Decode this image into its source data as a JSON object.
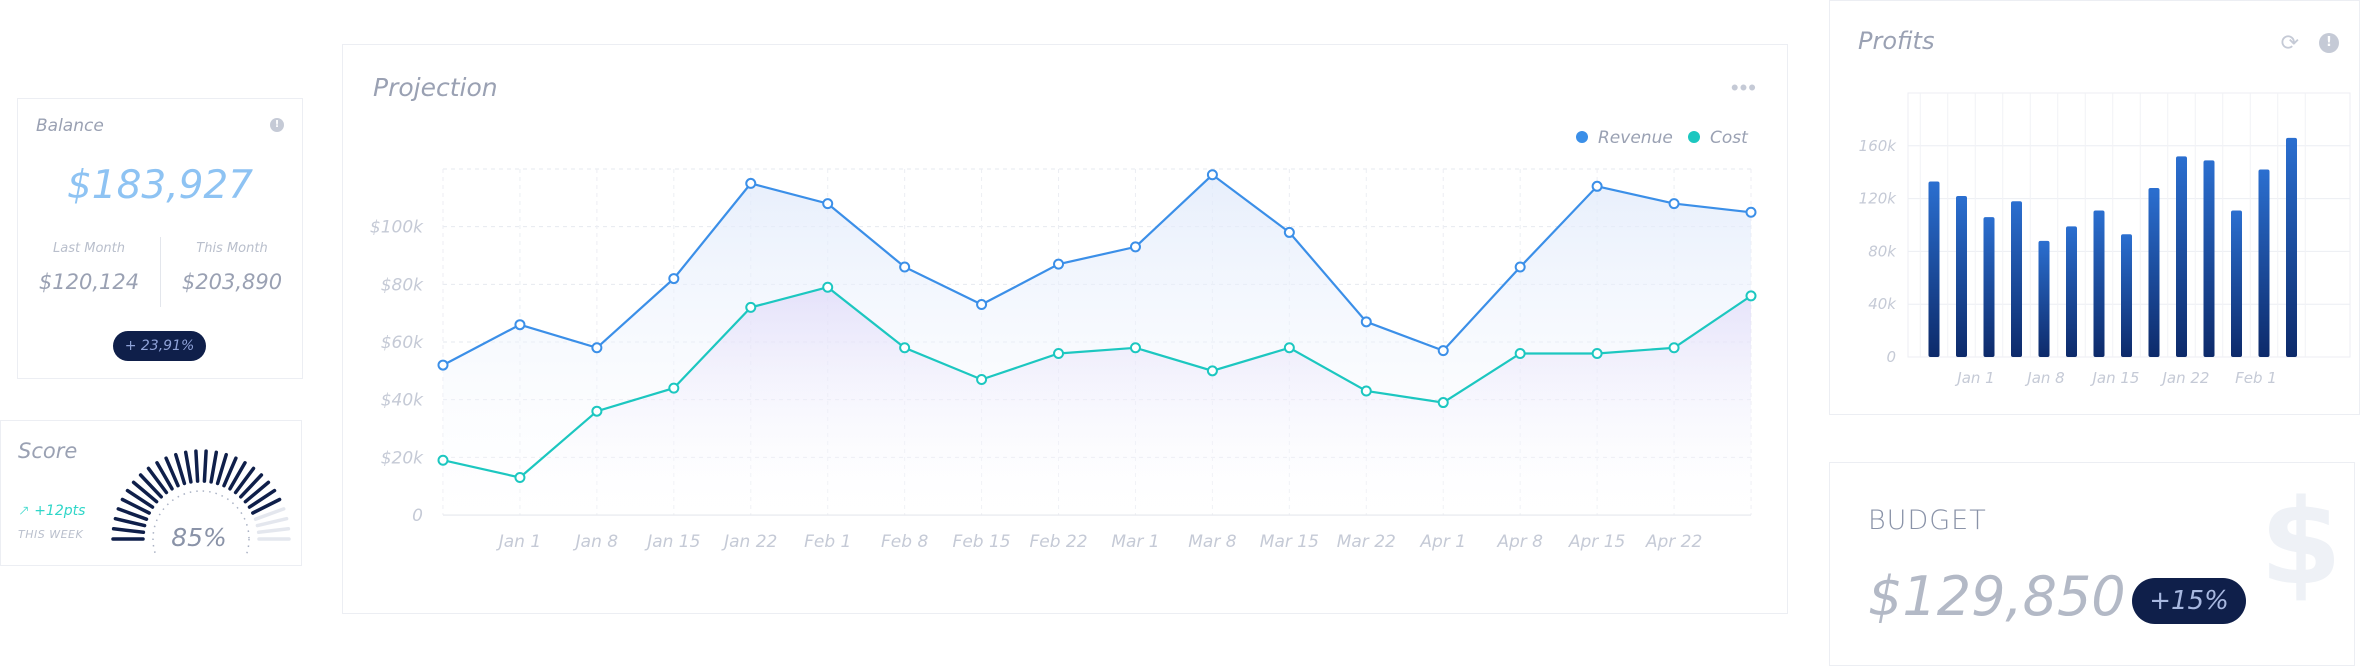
{
  "balance": {
    "title": "Balance",
    "amount": "$183,927",
    "last_month_label": "Last Month",
    "last_month_value": "$120,124",
    "this_month_label": "This Month",
    "this_month_value": "$203,890",
    "change_badge": "+ 23,91%"
  },
  "score": {
    "title": "Score",
    "points": "+12pts",
    "period": "THIS WEEK",
    "value_label": "85%",
    "value": 0.85
  },
  "projection": {
    "title": "Projection",
    "menu": "•••"
  },
  "profits": {
    "title": "Profits",
    "refresh_icon": "refresh-icon",
    "info_icon": "info-icon"
  },
  "budget": {
    "title": "BUDGET",
    "amount": "$129,850",
    "change_badge": "+15%"
  },
  "colors": {
    "revenue": "#3b8fe8",
    "cost": "#1cc7c0",
    "bar": "#1e5bb5",
    "badge_bg": "#0f1f4a"
  },
  "chart_data": [
    {
      "type": "line",
      "title": "Projection",
      "legend_position": "top-right",
      "grid": true,
      "x_tick_labels": [
        "Jan 1",
        "Jan 8",
        "Jan 15",
        "Jan 22",
        "Feb 1",
        "Feb 8",
        "Feb 15",
        "Feb 22",
        "Mar 1",
        "Mar 8",
        "Mar 15",
        "Mar 22",
        "Apr 1",
        "Apr 8",
        "Apr 15",
        "Apr 22"
      ],
      "y_tick_labels": [
        "0",
        "$20k",
        "$40k",
        "$60k",
        "$80k",
        "$100k"
      ],
      "ylim": [
        0,
        120000
      ],
      "series": [
        {
          "name": "Revenue",
          "values": [
            52000,
            66000,
            58000,
            82000,
            115000,
            108000,
            86000,
            73000,
            87000,
            93000,
            118000,
            98000,
            67000,
            57000,
            86000,
            114000,
            108000,
            105000
          ]
        },
        {
          "name": "Cost",
          "values": [
            19000,
            13000,
            36000,
            44000,
            72000,
            79000,
            58000,
            47000,
            56000,
            58000,
            50000,
            58000,
            43000,
            39000,
            56000,
            56000,
            58000,
            76000
          ]
        }
      ]
    },
    {
      "type": "bar",
      "title": "Profits",
      "grid": true,
      "x_tick_labels": [
        "Jan 1",
        "Jan 8",
        "Jan 15",
        "Jan 22",
        "Feb 1"
      ],
      "y_tick_labels": [
        "0",
        "40k",
        "80k",
        "120k",
        "160k"
      ],
      "ylim": [
        0,
        200000
      ],
      "values": [
        133000,
        122000,
        106000,
        118000,
        88000,
        99000,
        111000,
        93000,
        128000,
        152000,
        149000,
        111000,
        142000,
        166000
      ]
    }
  ]
}
